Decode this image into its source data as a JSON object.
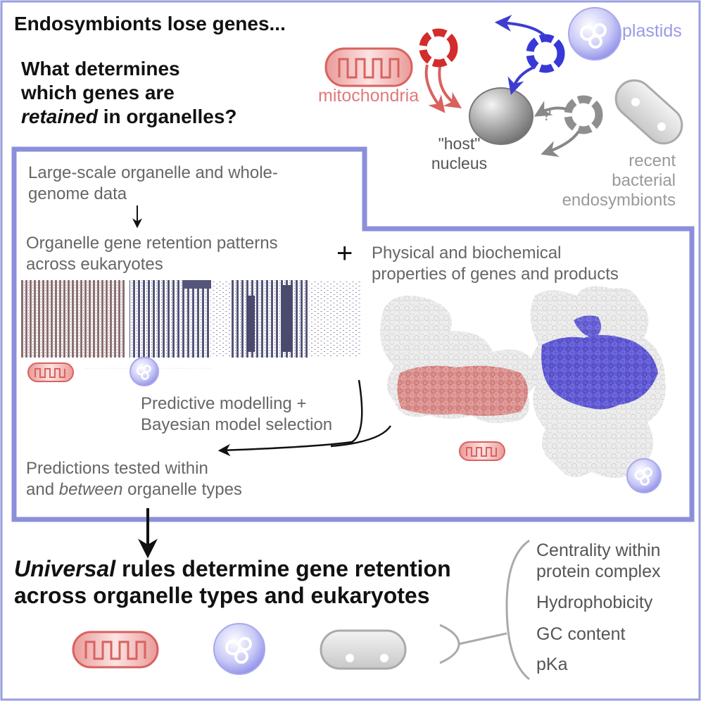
{
  "header": {
    "title": "Endosymbionts lose genes...",
    "question_line1": "What determines",
    "question_line2": "which genes are",
    "question_line3_em": "retained",
    "question_line3_rest": " in organelles?"
  },
  "organelles": {
    "mitochondria": "mitochondria",
    "plastids": "plastids",
    "host_nucleus_line1": "\"host\"",
    "host_nucleus_line2": "nucleus",
    "question_mark": "?",
    "recent_line1": "recent",
    "recent_line2": "bacterial",
    "recent_line3": "endosymbionts"
  },
  "workflow": {
    "data_line1": "Large-scale organelle and whole-",
    "data_line2": "genome data",
    "patterns_line1": "Organelle gene retention patterns",
    "patterns_line2": "across eukaryotes",
    "plus": "+",
    "properties_line1": "Physical and biochemical",
    "properties_line2": "properties of genes and products",
    "model_line1": "Predictive modelling +",
    "model_line2": "Bayesian model selection",
    "pred_line1": "Predictions tested within",
    "pred_line2_pre": "and ",
    "pred_line2_em": "between",
    "pred_line2_post": " organelle types"
  },
  "conclusion": {
    "line1_em": "Universal",
    "line1_rest": " rules determine gene retention",
    "line2": "across organelle types and eukaryotes"
  },
  "factors": [
    "Centrality within",
    "protein complex",
    "Hydrophobicity",
    "GC content",
    "pKa"
  ],
  "colors": {
    "frame": "#8b8fdb",
    "mito": "#d9625f",
    "plastid": "#4a4ad8",
    "gray": "#8a8a8a"
  }
}
